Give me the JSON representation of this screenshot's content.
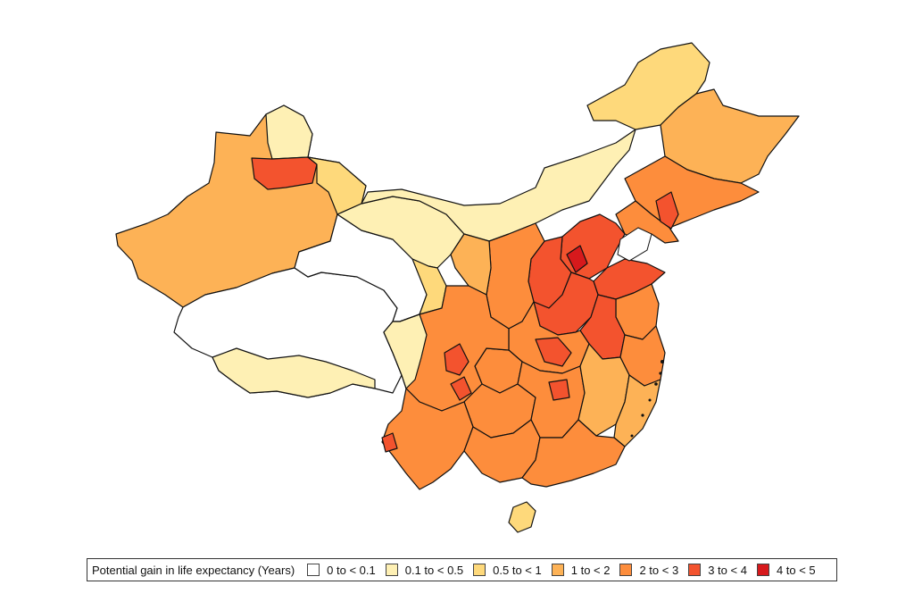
{
  "legend": {
    "title": "Potential gain in life expectancy (Years)",
    "items": [
      {
        "label": "0 to < 0.1",
        "color": "#ffffff"
      },
      {
        "label": "0.1 to < 0.5",
        "color": "#fef0b4"
      },
      {
        "label": "0.5 to < 1",
        "color": "#fed97b"
      },
      {
        "label": "1 to < 2",
        "color": "#fdb256"
      },
      {
        "label": "2 to < 3",
        "color": "#fd8d3c"
      },
      {
        "label": "3 to < 4",
        "color": "#f3532e"
      },
      {
        "label": "4 to < 5",
        "color": "#d7191c"
      }
    ]
  },
  "colors": {
    "border": "#111111",
    "inner_border": "#e9a06a"
  }
}
